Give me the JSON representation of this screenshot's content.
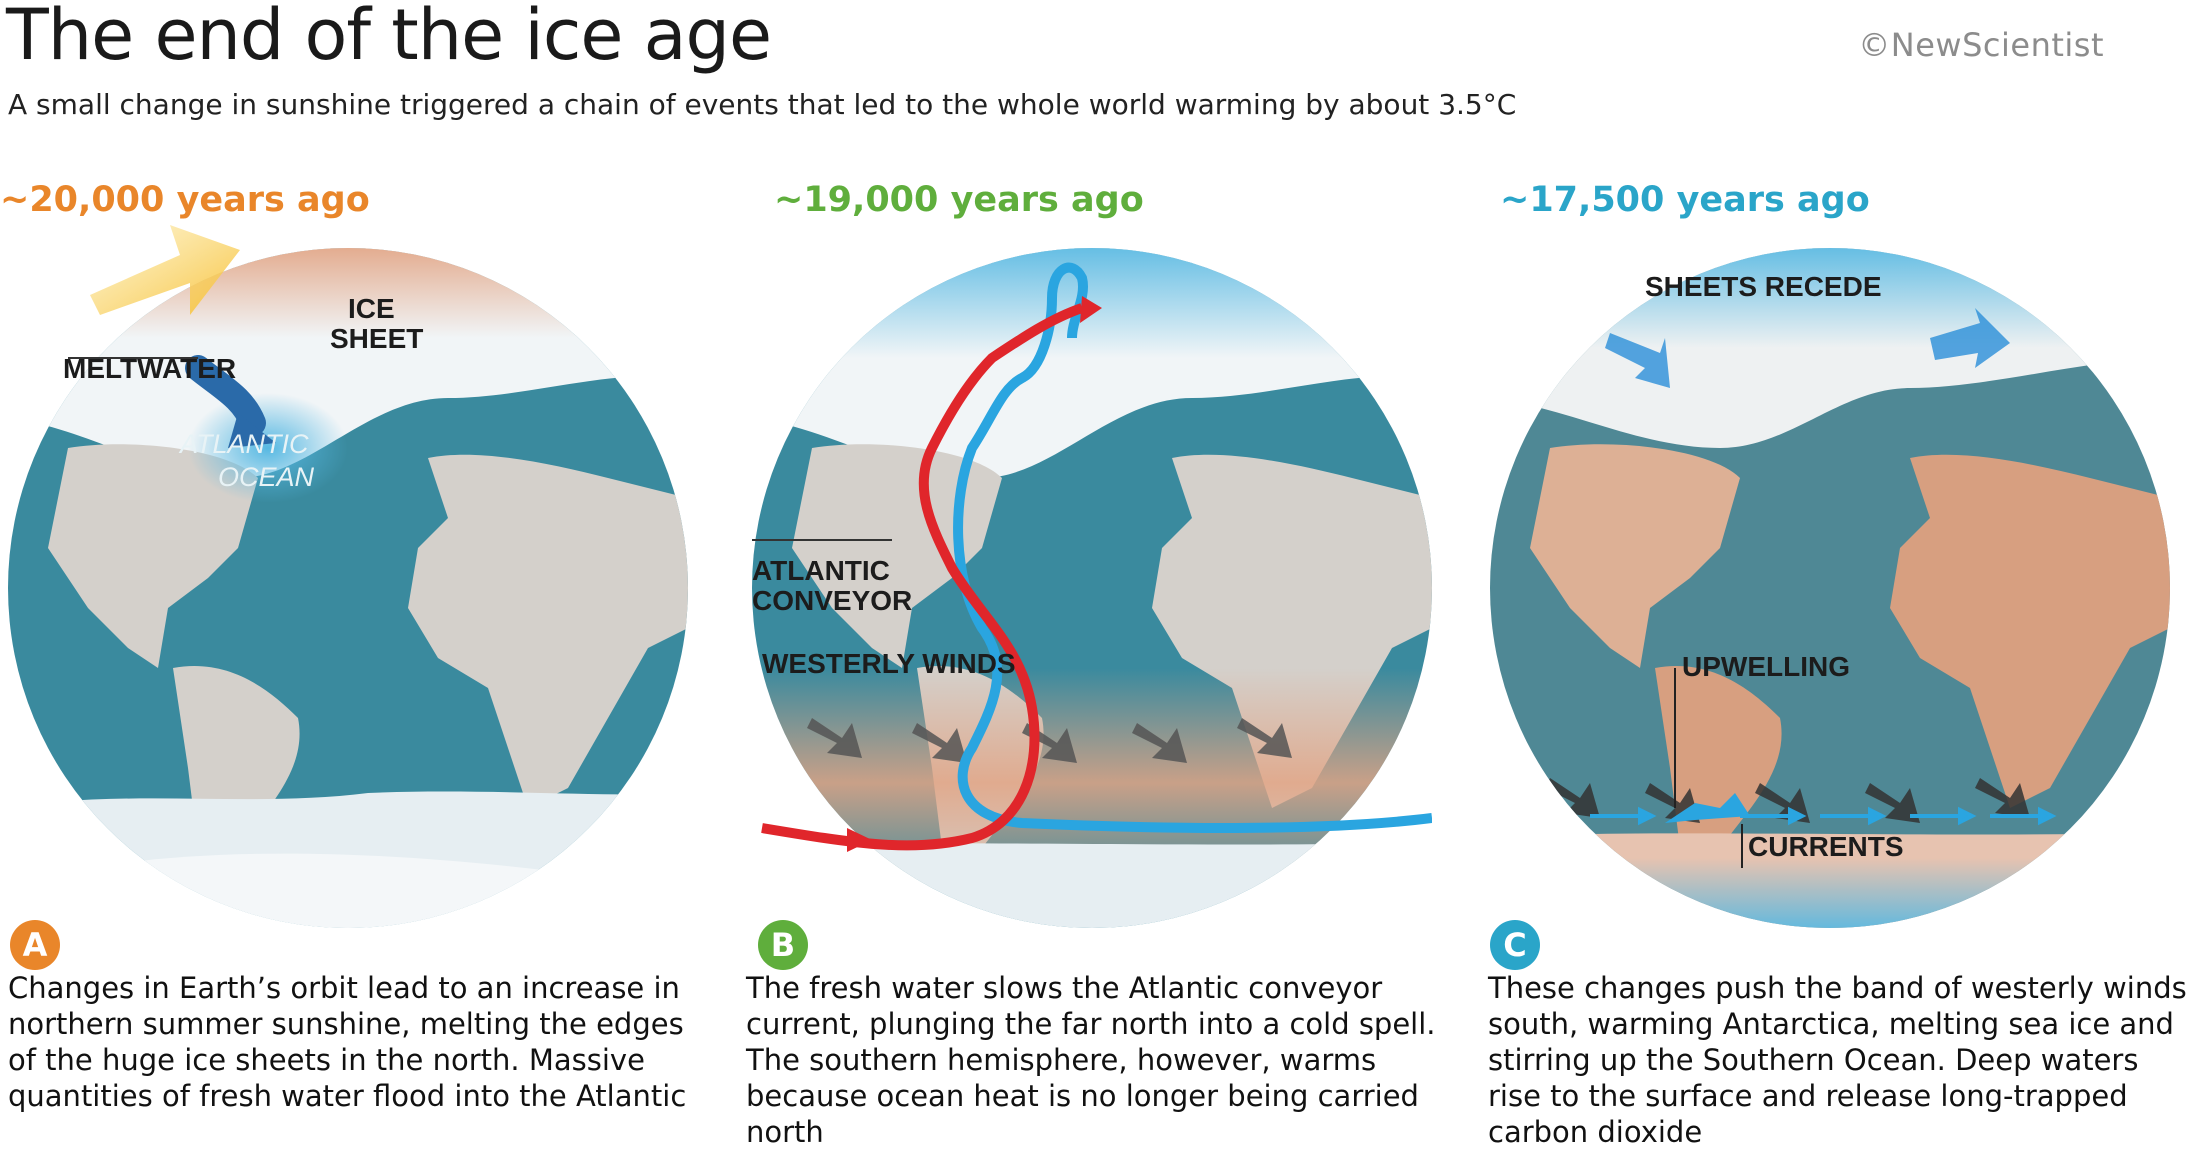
{
  "title": "The end of the ice age",
  "subtitle": "A small change in sunshine triggered a chain of events that led to the whole world warming by about 3.5°C",
  "credit": "©NewScientist",
  "colors": {
    "ocean": "#3a8a9e",
    "land": "#d4d0cb",
    "ice": "#f1f5f7",
    "warm": "#e2a484",
    "cold": "#56b8e2",
    "red_current": "#e0262b",
    "blue_current": "#2aa5e0"
  },
  "panels": [
    {
      "era": "~20,000 years ago",
      "era_color": "#e9862a",
      "badge": "A",
      "badge_color": "#e9862a",
      "labels": {
        "ice_sheet_1": "ICE",
        "ice_sheet_2": "SHEET",
        "meltwater": "MELTWATER",
        "ocean_1": "ATLANTIC",
        "ocean_2": "OCEAN"
      },
      "text": "Changes in Earth’s orbit lead to an increase in northern summer sunshine, melting the edges of the huge ice sheets in the north. Massive quantities of fresh water flood into the Atlantic"
    },
    {
      "era": "~19,000 years ago",
      "era_color": "#5fae3c",
      "badge": "B",
      "badge_color": "#5fae3c",
      "labels": {
        "conveyor_1": "ATLANTIC",
        "conveyor_2": "CONVEYOR",
        "winds": "WESTERLY WINDS"
      },
      "text": "The fresh water slows the Atlantic conveyor current, plunging the far north into a cold spell. The southern hemisphere, however, warms because ocean heat is no longer being carried north"
    },
    {
      "era": "~17,500 years ago",
      "era_color": "#2aa5c9",
      "badge": "C",
      "badge_color": "#2aa5c9",
      "labels": {
        "sheets": "SHEETS RECEDE",
        "upwelling": "UPWELLING",
        "currents": "CURRENTS"
      },
      "text": "These changes push the band of westerly winds south, warming Antarctica, melting sea ice and stirring up the Southern Ocean. Deep waters rise to the surface and release long-trapped carbon dioxide"
    }
  ]
}
